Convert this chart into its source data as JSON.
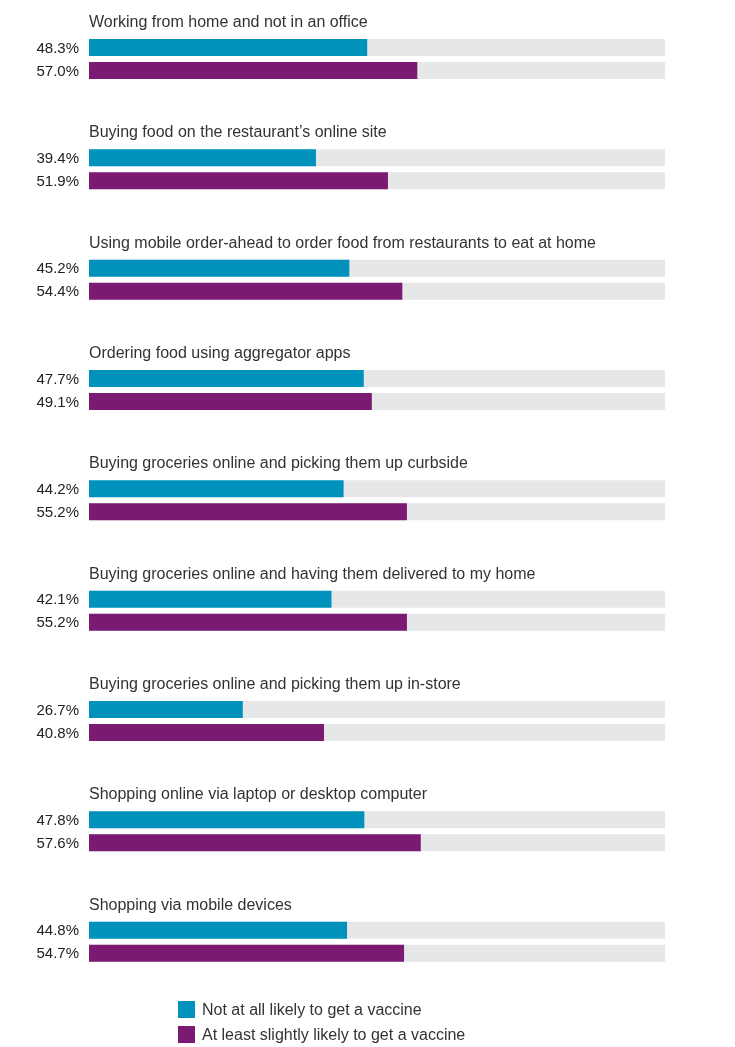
{
  "chart_data": {
    "type": "bar",
    "orientation": "horizontal",
    "categories": [
      "Working from home and not in an office",
      "Buying food on the restaurant’s online site",
      "Using mobile order-ahead to order food from restaurants to eat at home",
      "Ordering food using aggregator apps",
      "Buying groceries online and picking them up curbside",
      "Buying groceries online and having them delivered to my home",
      "Buying groceries online and picking them up in-store",
      "Shopping online via laptop or desktop computer",
      "Shopping via mobile devices"
    ],
    "series": [
      {
        "name": "Not at all likely to get a vaccine",
        "color": "#0092bc",
        "values": [
          48.3,
          39.4,
          45.2,
          47.7,
          44.2,
          42.1,
          26.7,
          47.8,
          44.8
        ],
        "value_labels": [
          "48.3%",
          "39.4%",
          "45.2%",
          "47.7%",
          "44.2%",
          "42.1%",
          "26.7%",
          "47.8%",
          "44.8%"
        ]
      },
      {
        "name": "At least slightly likely to get a vaccine",
        "color": "#7b1a72",
        "values": [
          57.0,
          51.9,
          54.4,
          49.1,
          55.2,
          55.2,
          40.8,
          57.6,
          54.7
        ],
        "value_labels": [
          "57.0%",
          "51.9%",
          "54.4%",
          "49.1%",
          "55.2%",
          "55.2%",
          "40.8%",
          "57.6%",
          "54.7%"
        ]
      }
    ],
    "xlim": [
      0,
      100
    ],
    "tick_labels": "y",
    "legend": "bottom"
  }
}
